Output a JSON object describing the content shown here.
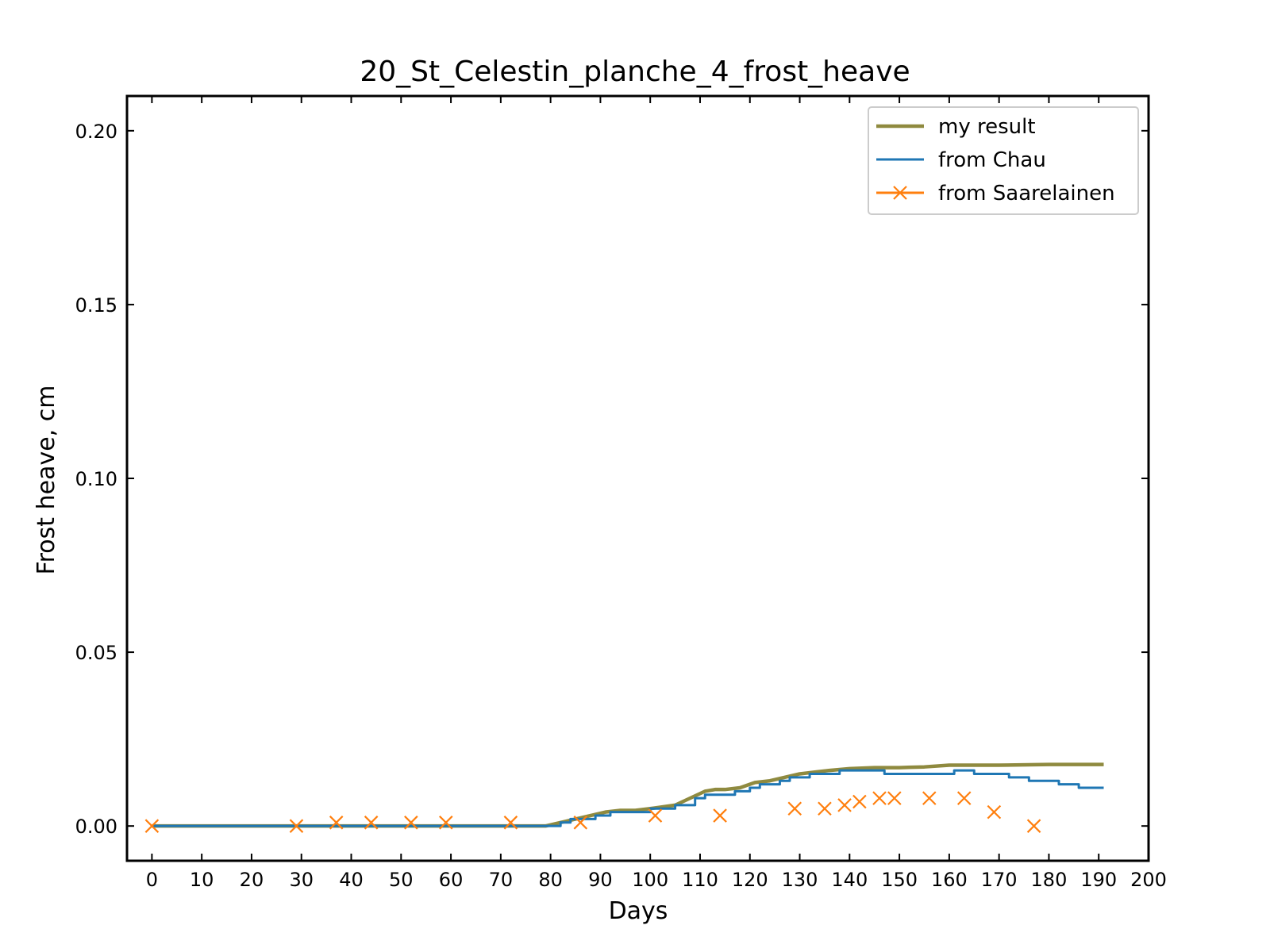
{
  "chart_data": {
    "type": "line",
    "title": "20_St_Celestin_planche_4_frost_heave",
    "xlabel": "Days",
    "ylabel": "Frost heave, cm",
    "xlim": [
      -5,
      200
    ],
    "ylim": [
      -0.01,
      0.21
    ],
    "xticks": [
      0,
      10,
      20,
      30,
      40,
      50,
      60,
      70,
      80,
      90,
      100,
      110,
      120,
      130,
      140,
      150,
      160,
      170,
      180,
      190,
      200
    ],
    "yticks": [
      0.0,
      0.05,
      0.1,
      0.15,
      0.2
    ],
    "ytick_labels": [
      "0.00",
      "0.05",
      "0.10",
      "0.15",
      "0.20"
    ],
    "grid": false,
    "legend": "top-right",
    "series": [
      {
        "name": "my result",
        "color": "#8f8a3f",
        "style": "line",
        "x": [
          0,
          79,
          82,
          85,
          88,
          91,
          94,
          97,
          100,
          105,
          108,
          111,
          113,
          115,
          118,
          121,
          124,
          127,
          130,
          133,
          136,
          140,
          145,
          150,
          155,
          160,
          165,
          170,
          180,
          191
        ],
        "y": [
          0,
          0,
          0.001,
          0.002,
          0.003,
          0.004,
          0.0045,
          0.0045,
          0.005,
          0.006,
          0.008,
          0.01,
          0.0105,
          0.0105,
          0.011,
          0.0125,
          0.013,
          0.014,
          0.015,
          0.0155,
          0.016,
          0.0165,
          0.0168,
          0.0168,
          0.017,
          0.0175,
          0.0175,
          0.0175,
          0.0177,
          0.0177
        ]
      },
      {
        "name": "from Chau",
        "color": "#1f77b4",
        "style": "step",
        "x": [
          0,
          80,
          82,
          84,
          87,
          89,
          92,
          95,
          98,
          100,
          103,
          105,
          107,
          109,
          111,
          113,
          117,
          120,
          122,
          126,
          128,
          132,
          135,
          138,
          142,
          145,
          147,
          150,
          153,
          157,
          159,
          161,
          163,
          165,
          167,
          170,
          172,
          174,
          176,
          178,
          180,
          182,
          184,
          186,
          191
        ],
        "y": [
          0,
          0,
          0.001,
          0.002,
          0.002,
          0.003,
          0.004,
          0.004,
          0.004,
          0.005,
          0.005,
          0.006,
          0.006,
          0.008,
          0.009,
          0.009,
          0.01,
          0.011,
          0.012,
          0.013,
          0.014,
          0.015,
          0.015,
          0.016,
          0.016,
          0.016,
          0.015,
          0.015,
          0.015,
          0.015,
          0.015,
          0.016,
          0.016,
          0.015,
          0.015,
          0.015,
          0.014,
          0.014,
          0.013,
          0.013,
          0.013,
          0.012,
          0.012,
          0.011,
          0.011
        ]
      },
      {
        "name": "from Saarelainen",
        "color": "#ff7f0e",
        "style": "markers",
        "marker": "x",
        "x": [
          0,
          29,
          37,
          44,
          52,
          59,
          72,
          86,
          101,
          114,
          129,
          135,
          139,
          142,
          146,
          149,
          156,
          163,
          169,
          177
        ],
        "y": [
          0,
          0,
          0.001,
          0.001,
          0.001,
          0.001,
          0.001,
          0.001,
          0.003,
          0.003,
          0.005,
          0.005,
          0.006,
          0.007,
          0.008,
          0.008,
          0.008,
          0.008,
          0.004,
          0
        ]
      }
    ]
  }
}
